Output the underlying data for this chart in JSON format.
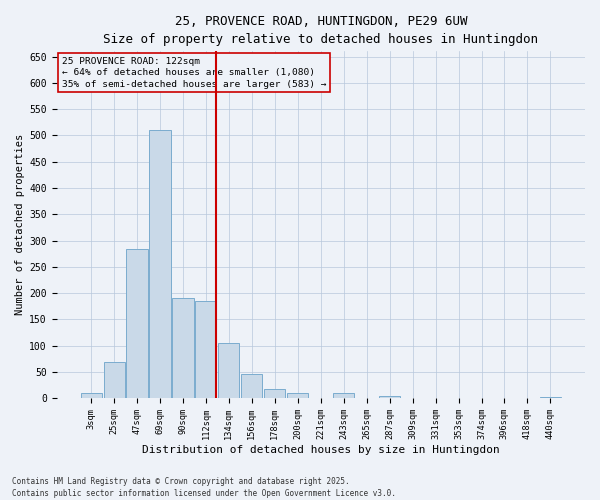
{
  "title_line1": "25, PROVENCE ROAD, HUNTINGDON, PE29 6UW",
  "title_line2": "Size of property relative to detached houses in Huntingdon",
  "xlabel": "Distribution of detached houses by size in Huntingdon",
  "ylabel": "Number of detached properties",
  "categories": [
    "3sqm",
    "25sqm",
    "47sqm",
    "69sqm",
    "90sqm",
    "112sqm",
    "134sqm",
    "156sqm",
    "178sqm",
    "200sqm",
    "221sqm",
    "243sqm",
    "265sqm",
    "287sqm",
    "309sqm",
    "331sqm",
    "353sqm",
    "374sqm",
    "396sqm",
    "418sqm",
    "440sqm"
  ],
  "values": [
    10,
    68,
    283,
    510,
    190,
    185,
    105,
    47,
    17,
    10,
    0,
    10,
    0,
    5,
    0,
    0,
    0,
    0,
    0,
    0,
    3
  ],
  "bar_color": "#c9d9e8",
  "bar_edge_color": "#7aaccf",
  "vline_color": "#cc0000",
  "vline_x": 5.45,
  "annotation_title": "25 PROVENCE ROAD: 122sqm",
  "annotation_line1": "← 64% of detached houses are smaller (1,080)",
  "annotation_line2": "35% of semi-detached houses are larger (583) →",
  "annotation_box_edge": "#cc0000",
  "ylim": [
    0,
    660
  ],
  "yticks": [
    0,
    50,
    100,
    150,
    200,
    250,
    300,
    350,
    400,
    450,
    500,
    550,
    600,
    650
  ],
  "footer_line1": "Contains HM Land Registry data © Crown copyright and database right 2025.",
  "footer_line2": "Contains public sector information licensed under the Open Government Licence v3.0.",
  "background_color": "#eef2f8"
}
